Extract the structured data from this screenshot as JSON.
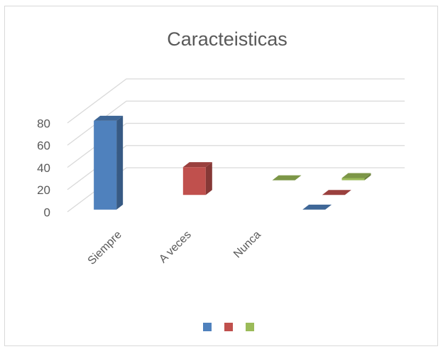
{
  "chart_data": {
    "type": "bar3d",
    "title": "Caracteisticas",
    "categories": [
      "Siempre",
      "A veces",
      "Nunca",
      null
    ],
    "series": [
      {
        "color": "#4f81bd",
        "values": [
          80,
          null,
          null,
          0
        ]
      },
      {
        "color": "#c0504d",
        "values": [
          null,
          25,
          null,
          0
        ]
      },
      {
        "color": "#9bbb59",
        "values": [
          null,
          null,
          0,
          2
        ]
      }
    ],
    "ylim": [
      0,
      80
    ],
    "yticks": [
      0,
      20,
      40,
      60,
      80
    ],
    "grid": true,
    "legend": "bottom"
  }
}
